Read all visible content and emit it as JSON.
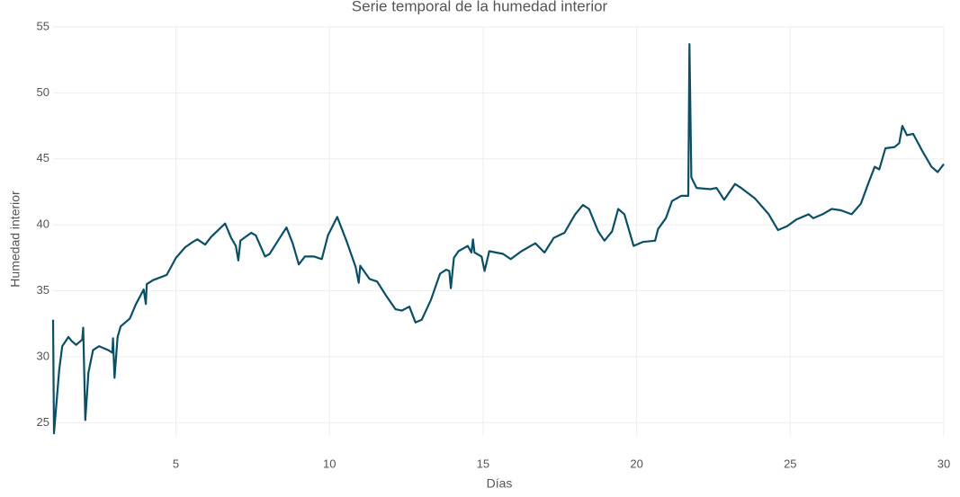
{
  "chart_data": {
    "type": "line",
    "title": "Serie temporal de la humedad interior",
    "x_label": "Días",
    "y_label": "Humedad interior",
    "color": "#0b4f66",
    "grid": true,
    "xlim": [
      1,
      30
    ],
    "ylim": [
      24,
      55
    ],
    "xticks": [
      5,
      10,
      15,
      20,
      25,
      30
    ],
    "yticks": [
      25,
      30,
      35,
      40,
      45,
      50,
      55
    ],
    "x": [
      1.0,
      1.03,
      1.2,
      1.3,
      1.5,
      1.6,
      1.75,
      1.95,
      1.98,
      2.05,
      2.15,
      2.3,
      2.5,
      2.8,
      2.93,
      2.95,
      3.0,
      3.1,
      3.2,
      3.5,
      3.7,
      3.95,
      4.02,
      4.05,
      4.25,
      4.7,
      5.0,
      5.3,
      5.55,
      5.7,
      5.95,
      6.15,
      6.6,
      6.8,
      6.95,
      7.03,
      7.1,
      7.45,
      7.6,
      7.9,
      8.05,
      8.35,
      8.6,
      8.8,
      9.0,
      9.2,
      9.5,
      9.75,
      9.95,
      10.25,
      10.55,
      10.85,
      10.95,
      11.0,
      11.3,
      11.55,
      11.85,
      12.15,
      12.35,
      12.6,
      12.8,
      13.0,
      13.3,
      13.6,
      13.8,
      13.9,
      13.95,
      14.05,
      14.2,
      14.5,
      14.62,
      14.67,
      14.72,
      14.95,
      15.05,
      15.2,
      15.65,
      15.9,
      16.25,
      16.7,
      17.0,
      17.3,
      17.65,
      18.0,
      18.25,
      18.45,
      18.75,
      18.95,
      19.2,
      19.4,
      19.6,
      19.9,
      20.2,
      20.6,
      20.7,
      20.95,
      21.15,
      21.45,
      21.68,
      21.72,
      21.78,
      21.95,
      22.4,
      22.6,
      22.85,
      23.2,
      23.4,
      23.85,
      24.3,
      24.6,
      24.9,
      25.2,
      25.6,
      25.75,
      26.05,
      26.35,
      26.65,
      27.0,
      27.3,
      27.55,
      27.75,
      27.9,
      28.1,
      28.4,
      28.55,
      28.65,
      28.8,
      29.0,
      29.3,
      29.6,
      29.8,
      30.0
    ],
    "values": [
      32.8,
      24.2,
      29.0,
      30.8,
      31.5,
      31.2,
      30.9,
      31.3,
      32.2,
      25.2,
      28.8,
      30.5,
      30.8,
      30.5,
      30.3,
      31.4,
      28.4,
      31.5,
      32.3,
      32.9,
      34.0,
      35.1,
      34.0,
      35.5,
      35.8,
      36.2,
      37.5,
      38.3,
      38.7,
      38.9,
      38.5,
      39.1,
      40.1,
      39.0,
      38.4,
      37.3,
      38.8,
      39.4,
      39.2,
      37.6,
      37.8,
      38.9,
      39.8,
      38.6,
      37.0,
      37.6,
      37.6,
      37.4,
      39.2,
      40.6,
      38.8,
      36.8,
      35.6,
      36.9,
      35.9,
      35.7,
      34.6,
      33.6,
      33.5,
      33.8,
      32.6,
      32.8,
      34.3,
      36.3,
      36.6,
      36.5,
      35.2,
      37.5,
      38.0,
      38.4,
      37.9,
      38.9,
      37.9,
      37.6,
      36.5,
      38.0,
      37.8,
      37.4,
      38.0,
      38.6,
      37.9,
      39.0,
      39.4,
      40.8,
      41.5,
      41.2,
      39.5,
      38.8,
      39.5,
      41.2,
      40.8,
      38.4,
      38.7,
      38.8,
      39.7,
      40.5,
      41.8,
      42.2,
      42.2,
      53.7,
      43.6,
      42.8,
      42.7,
      42.8,
      41.9,
      43.1,
      42.8,
      42.0,
      40.8,
      39.6,
      39.9,
      40.4,
      40.8,
      40.5,
      40.8,
      41.2,
      41.1,
      40.8,
      41.6,
      43.2,
      44.4,
      44.2,
      45.8,
      45.9,
      46.2,
      47.5,
      46.8,
      46.9,
      45.6,
      44.4,
      44.0,
      44.6
    ]
  }
}
